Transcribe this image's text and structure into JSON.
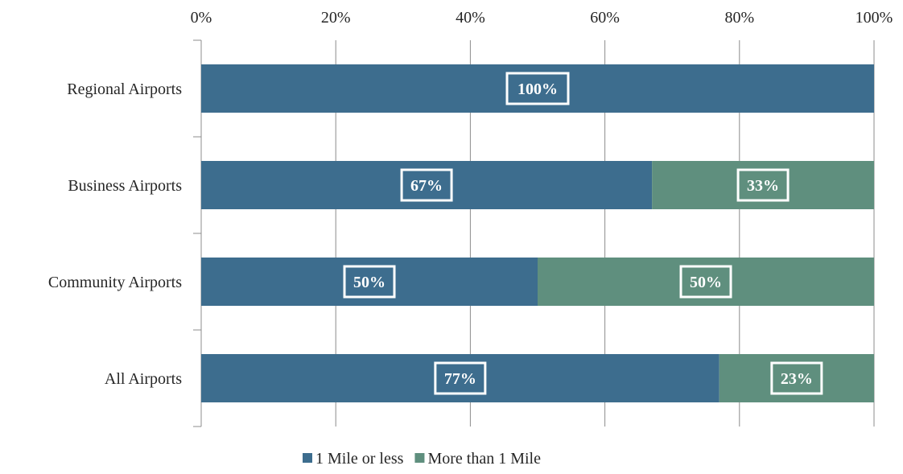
{
  "chart_data": {
    "type": "bar",
    "orientation": "horizontal",
    "stacked": true,
    "categories": [
      "Regional Airports",
      "Business Airports",
      "Community Airports",
      "All Airports"
    ],
    "series": [
      {
        "name": "1 Mile or less",
        "values": [
          100,
          67,
          50,
          77
        ],
        "labels": [
          "100%",
          "67%",
          "50%",
          "77%"
        ],
        "color": "#3d6d8e"
      },
      {
        "name": "More than 1 Mile",
        "values": [
          0,
          33,
          50,
          23
        ],
        "labels": [
          "",
          "33%",
          "50%",
          "23%"
        ],
        "color": "#5f8f7e"
      }
    ],
    "xlim": [
      0,
      100
    ],
    "x_ticks": [
      0,
      20,
      40,
      60,
      80,
      100
    ],
    "x_tick_labels": [
      "0%",
      "20%",
      "40%",
      "60%",
      "80%",
      "100%"
    ],
    "x_axis_position": "top",
    "grid": true,
    "legend_position": "bottom"
  }
}
